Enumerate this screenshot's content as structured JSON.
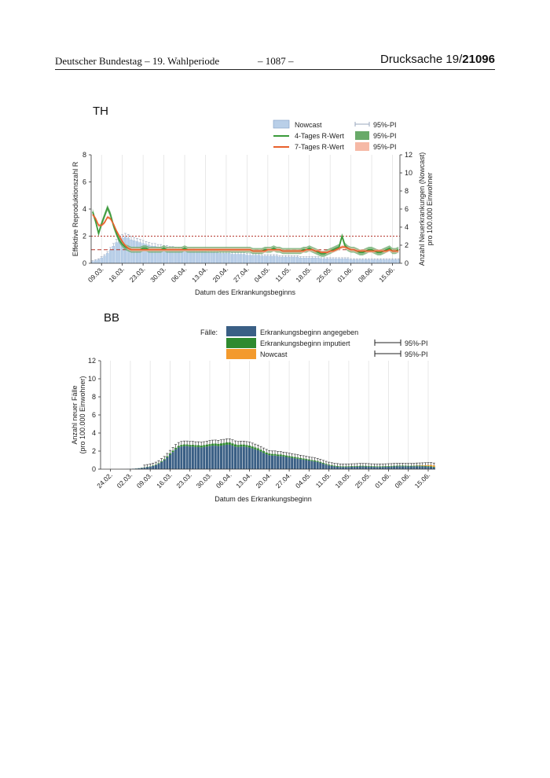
{
  "header": {
    "left": "Deutscher Bundestag – 19. Wahlperiode",
    "center": "– 1087 –",
    "right_prefix": "Drucksache ",
    "right_number": "19/",
    "right_bold": "21096"
  },
  "chart_data": [
    {
      "type": "bar",
      "panel_title": "TH",
      "xlabel": "Datum des Erkrankungsbeginns",
      "ylabel": "Effektive Reproduktionszahl R",
      "y2label_line1": "Anzahl Neuerkrankungen (Nowcast)",
      "y2label_line2": "pro 100.000 Einwohner",
      "ylim": [
        0,
        8
      ],
      "y2lim": [
        0,
        12
      ],
      "yticks": [
        "0",
        "2",
        "4",
        "6",
        "8"
      ],
      "y2ticks": [
        "0",
        "2",
        "4",
        "6",
        "8",
        "10",
        "12"
      ],
      "reference_lines": [
        1,
        3
      ],
      "x_start": "2020-03-06",
      "xticks": [
        "09.03.",
        "16.03.",
        "23.03.",
        "30.03.",
        "06.04.",
        "13.04.",
        "20.04.",
        "27.04.",
        "04.05.",
        "11.05.",
        "18.05.",
        "25.05.",
        "01.06.",
        "08.06.",
        "15.06."
      ],
      "legend": [
        {
          "label": "Nowcast",
          "color": "#b9cfe8"
        },
        {
          "label": "4-Tages R-Wert",
          "color": "#3a9b3a"
        },
        {
          "label": "7-Tages R-Wert",
          "color": "#e8602c"
        },
        {
          "label": "95%-PI",
          "color": "#9aa7bd"
        },
        {
          "label": "95%-PI",
          "color": "#69aa69"
        },
        {
          "label": "95%-PI",
          "color": "#f6b9a6"
        }
      ],
      "series": [
        {
          "name": "Nowcast",
          "axis": "right",
          "values": [
            0.2,
            0.3,
            0.4,
            0.6,
            0.8,
            1.1,
            1.5,
            1.9,
            2.3,
            2.6,
            2.8,
            2.9,
            2.8,
            2.6,
            2.5,
            2.4,
            2.3,
            2.2,
            2.1,
            2.0,
            1.9,
            1.9,
            1.8,
            1.8,
            1.7,
            1.7,
            1.6,
            1.6,
            1.5,
            1.5,
            1.5,
            1.4,
            1.4,
            1.4,
            1.4,
            1.3,
            1.3,
            1.3,
            1.3,
            1.2,
            1.2,
            1.2,
            1.2,
            1.1,
            1.1,
            1.1,
            1.1,
            1.0,
            1.0,
            1.0,
            1.0,
            1.0,
            0.9,
            0.9,
            0.9,
            0.9,
            0.9,
            0.8,
            0.8,
            0.8,
            0.8,
            0.8,
            0.8,
            0.7,
            0.7,
            0.7,
            0.7,
            0.7,
            0.7,
            0.7,
            0.6,
            0.6,
            0.6,
            0.6,
            0.6,
            0.6,
            0.6,
            0.5,
            0.5,
            0.5,
            0.5,
            0.5,
            0.5,
            0.5,
            0.5,
            0.5,
            0.5,
            0.4,
            0.4,
            0.4,
            0.4,
            0.4,
            0.4,
            0.4,
            0.4,
            0.4,
            0.4,
            0.4,
            0.4,
            0.4,
            0.4,
            0.4,
            0.4,
            0.4
          ]
        },
        {
          "name": "4-Tages R-Wert",
          "axis": "left",
          "values": [
            3.8,
            3.1,
            2.2,
            2.9,
            3.5,
            4.1,
            3.6,
            2.8,
            2.2,
            1.7,
            1.4,
            1.2,
            1.1,
            1.0,
            1.0,
            1.0,
            1.0,
            1.1,
            1.1,
            1.0,
            1.0,
            1.0,
            1.0,
            1.0,
            1.1,
            1.0,
            1.0,
            1.0,
            1.0,
            1.0,
            1.0,
            1.1,
            1.0,
            1.0,
            1.0,
            1.0,
            1.0,
            1.0,
            1.0,
            1.0,
            1.0,
            1.0,
            1.0,
            1.0,
            1.0,
            1.0,
            1.0,
            1.0,
            1.0,
            1.0,
            1.0,
            1.0,
            1.0,
            1.0,
            0.9,
            0.9,
            0.9,
            0.9,
            1.0,
            1.0,
            1.0,
            1.1,
            1.0,
            1.0,
            0.9,
            0.9,
            0.9,
            0.9,
            0.9,
            0.9,
            0.9,
            1.0,
            1.0,
            1.1,
            1.0,
            0.9,
            0.8,
            0.7,
            0.7,
            0.8,
            0.9,
            1.0,
            1.1,
            1.2,
            2.0,
            1.3,
            1.1,
            1.0,
            1.0,
            0.9,
            0.8,
            0.8,
            0.9,
            1.0,
            1.0,
            0.9,
            0.8,
            0.8,
            0.9,
            1.0,
            1.1,
            0.9,
            0.9,
            1.0
          ]
        },
        {
          "name": "7-Tages R-Wert",
          "axis": "left",
          "values": [
            3.6,
            3.3,
            2.8,
            2.8,
            3.0,
            3.4,
            3.3,
            2.9,
            2.4,
            2.0,
            1.6,
            1.3,
            1.1,
            1.0,
            1.0,
            1.0,
            1.0,
            1.0,
            1.0,
            1.0,
            1.0,
            1.0,
            1.0,
            1.0,
            1.0,
            1.0,
            1.0,
            1.0,
            1.0,
            1.0,
            1.0,
            1.0,
            1.0,
            1.0,
            1.0,
            1.0,
            1.0,
            1.0,
            1.0,
            1.0,
            1.0,
            1.0,
            1.0,
            1.0,
            1.0,
            1.0,
            1.0,
            1.0,
            1.0,
            1.0,
            1.0,
            1.0,
            1.0,
            1.0,
            0.9,
            0.9,
            0.9,
            0.9,
            0.9,
            1.0,
            1.0,
            1.0,
            1.0,
            1.0,
            0.9,
            0.9,
            0.9,
            0.9,
            0.9,
            0.9,
            0.9,
            0.9,
            1.0,
            1.0,
            1.0,
            0.9,
            0.9,
            0.8,
            0.8,
            0.8,
            0.9,
            0.9,
            1.0,
            1.1,
            1.2,
            1.2,
            1.1,
            1.0,
            1.0,
            0.9,
            0.9,
            0.9,
            0.9,
            0.9,
            0.9,
            0.9,
            0.9,
            0.9,
            0.9,
            0.9,
            1.0,
            0.9,
            0.9,
            0.9
          ]
        }
      ]
    },
    {
      "type": "bar",
      "panel_title": "BB",
      "xlabel": "Datum des Erkrankungsbeginn",
      "ylabel_line1": "Anzahl neuer Fälle",
      "ylabel_line2": "(pro 100.000 Einwohner)",
      "ylim": [
        0,
        12
      ],
      "yticks": [
        "0",
        "2",
        "4",
        "6",
        "8",
        "10",
        "12"
      ],
      "x_start": "2020-02-21",
      "xticks": [
        "24.02.",
        "02.03.",
        "09.03.",
        "16.03.",
        "23.03.",
        "30.03.",
        "06.04.",
        "13.04.",
        "20.04.",
        "27.04.",
        "04.05.",
        "11.05.",
        "18.05.",
        "25.05.",
        "01.06.",
        "08.06.",
        "15.06."
      ],
      "legend_title": "Fälle:",
      "legend": [
        {
          "label": "Erkrankungsbeginn angegeben",
          "color": "#3a5f85"
        },
        {
          "label": "Erkrankungsbeginn imputiert",
          "color": "#2f8a2f"
        },
        {
          "label": "Nowcast",
          "color": "#f39a2d"
        },
        {
          "label": "95%-PI",
          "color": "#222222"
        },
        {
          "label": "95%-PI",
          "color": "#222222"
        }
      ],
      "series": [
        {
          "name": "Erkrankungsbeginn angegeben",
          "values": [
            0,
            0,
            0,
            0,
            0,
            0,
            0,
            0.01,
            0.01,
            0.02,
            0.03,
            0.05,
            0.07,
            0.1,
            0.13,
            0.17,
            0.22,
            0.28,
            0.35,
            0.45,
            0.6,
            0.8,
            1.0,
            1.3,
            1.6,
            1.9,
            2.2,
            2.4,
            2.5,
            2.55,
            2.55,
            2.5,
            2.5,
            2.45,
            2.45,
            2.4,
            2.45,
            2.5,
            2.55,
            2.6,
            2.6,
            2.55,
            2.6,
            2.65,
            2.7,
            2.7,
            2.6,
            2.5,
            2.45,
            2.5,
            2.5,
            2.45,
            2.4,
            2.3,
            2.2,
            2.1,
            1.95,
            1.8,
            1.65,
            1.55,
            1.5,
            1.5,
            1.45,
            1.45,
            1.4,
            1.35,
            1.3,
            1.25,
            1.2,
            1.15,
            1.1,
            1.05,
            1.0,
            0.95,
            0.9,
            0.85,
            0.8,
            0.7,
            0.6,
            0.5,
            0.42,
            0.36,
            0.3,
            0.27,
            0.25,
            0.24,
            0.24,
            0.25,
            0.26,
            0.27,
            0.28,
            0.3,
            0.3,
            0.29,
            0.28,
            0.26,
            0.25,
            0.24,
            0.24,
            0.25,
            0.26,
            0.27,
            0.28,
            0.3,
            0.31,
            0.32,
            0.32,
            0.31,
            0.3,
            0.3,
            0.31,
            0.32,
            0.32,
            0.31,
            0.3,
            0.28,
            0.26,
            0.2
          ]
        },
        {
          "name": "Erkrankungsbeginn imputiert",
          "values": [
            0,
            0,
            0,
            0,
            0,
            0,
            0,
            0,
            0,
            0,
            0,
            0,
            0.01,
            0.01,
            0.02,
            0.02,
            0.03,
            0.03,
            0.04,
            0.05,
            0.06,
            0.08,
            0.1,
            0.12,
            0.14,
            0.15,
            0.16,
            0.17,
            0.18,
            0.18,
            0.18,
            0.18,
            0.19,
            0.2,
            0.2,
            0.21,
            0.21,
            0.22,
            0.22,
            0.22,
            0.23,
            0.24,
            0.25,
            0.25,
            0.26,
            0.26,
            0.25,
            0.24,
            0.23,
            0.22,
            0.22,
            0.22,
            0.21,
            0.21,
            0.2,
            0.2,
            0.2,
            0.19,
            0.19,
            0.18,
            0.18,
            0.18,
            0.17,
            0.17,
            0.16,
            0.16,
            0.15,
            0.15,
            0.14,
            0.14,
            0.13,
            0.13,
            0.12,
            0.12,
            0.11,
            0.11,
            0.1,
            0.1,
            0.09,
            0.09,
            0.08,
            0.08,
            0.08,
            0.08,
            0.07,
            0.07,
            0.07,
            0.07,
            0.07,
            0.07,
            0.07,
            0.07,
            0.07,
            0.07,
            0.07,
            0.07,
            0.07,
            0.07,
            0.07,
            0.07,
            0.07,
            0.07,
            0.07,
            0.07,
            0.07,
            0.07,
            0.07,
            0.07,
            0.07,
            0.07,
            0.07,
            0.07,
            0.07,
            0.07,
            0.07,
            0.07,
            0.07,
            0.06
          ]
        },
        {
          "name": "Nowcast",
          "values": [
            0,
            0,
            0,
            0,
            0,
            0,
            0,
            0,
            0,
            0,
            0,
            0,
            0,
            0,
            0,
            0,
            0,
            0,
            0,
            0,
            0,
            0,
            0,
            0,
            0,
            0,
            0,
            0,
            0,
            0,
            0,
            0,
            0,
            0,
            0,
            0,
            0,
            0,
            0,
            0,
            0,
            0,
            0,
            0,
            0,
            0,
            0,
            0,
            0,
            0,
            0,
            0,
            0,
            0,
            0,
            0,
            0,
            0,
            0,
            0,
            0,
            0,
            0,
            0,
            0,
            0,
            0,
            0,
            0,
            0,
            0,
            0,
            0,
            0,
            0,
            0,
            0,
            0,
            0,
            0,
            0,
            0,
            0,
            0,
            0,
            0,
            0,
            0,
            0,
            0,
            0,
            0,
            0,
            0,
            0,
            0,
            0,
            0,
            0,
            0,
            0,
            0,
            0,
            0,
            0,
            0,
            0,
            0,
            0,
            0,
            0.01,
            0.02,
            0.03,
            0.05,
            0.07,
            0.1,
            0.12,
            0.15
          ]
        }
      ]
    }
  ]
}
